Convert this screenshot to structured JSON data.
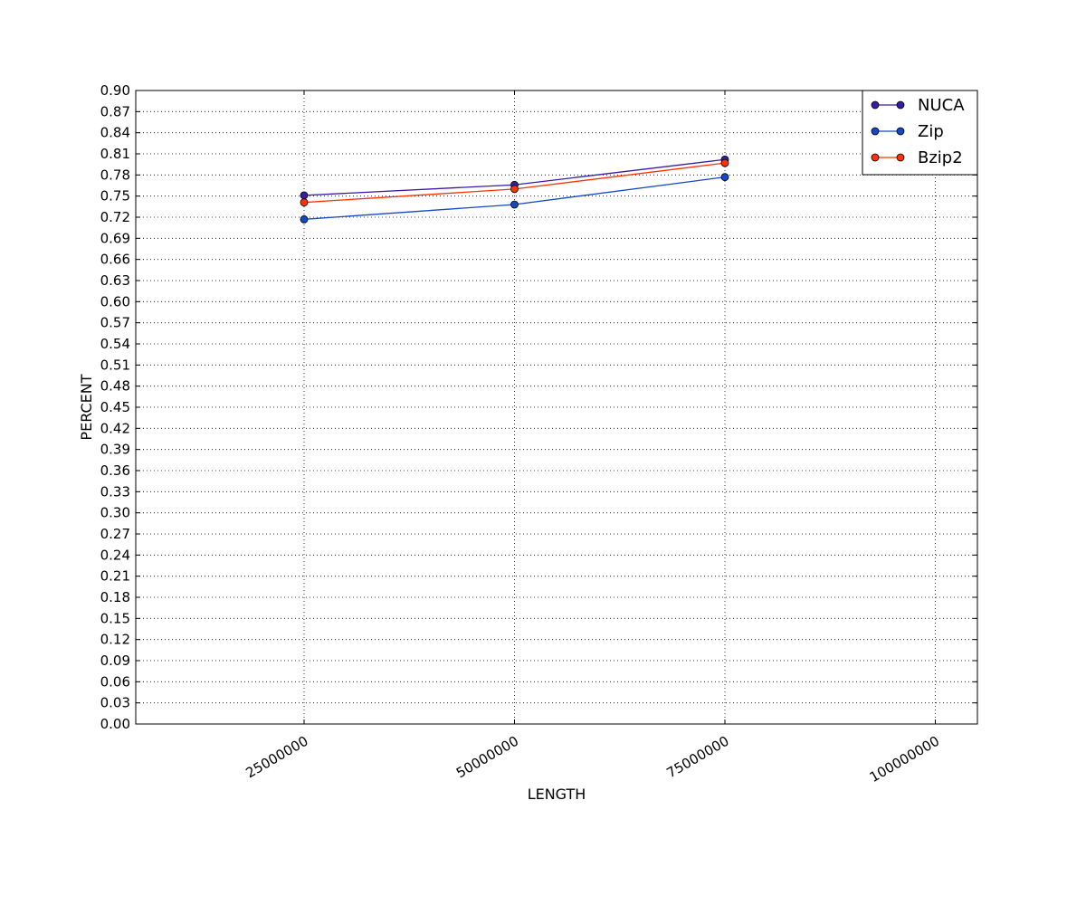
{
  "chart_data": {
    "type": "line",
    "title": "",
    "xlabel": "LENGTH",
    "ylabel": "PERCENT",
    "xlim": [
      5000000,
      105000000
    ],
    "ylim": [
      0.0,
      0.9
    ],
    "x_ticks": [
      25000000,
      50000000,
      75000000,
      100000000
    ],
    "x_tick_labels": [
      "25000000",
      "50000000",
      "75000000",
      "100000000"
    ],
    "y_ticks": [
      0.0,
      0.03,
      0.06,
      0.09,
      0.12,
      0.15,
      0.18,
      0.21,
      0.24,
      0.27,
      0.3,
      0.33,
      0.36,
      0.39,
      0.42,
      0.45,
      0.48,
      0.51,
      0.54,
      0.57,
      0.6,
      0.63,
      0.66,
      0.69,
      0.72,
      0.75,
      0.78,
      0.81,
      0.84,
      0.87,
      0.9
    ],
    "y_tick_labels": [
      "0.00",
      "0.03",
      "0.06",
      "0.09",
      "0.12",
      "0.15",
      "0.18",
      "0.21",
      "0.24",
      "0.27",
      "0.30",
      "0.33",
      "0.36",
      "0.39",
      "0.42",
      "0.45",
      "0.48",
      "0.51",
      "0.54",
      "0.57",
      "0.60",
      "0.63",
      "0.66",
      "0.69",
      "0.72",
      "0.75",
      "0.78",
      "0.81",
      "0.84",
      "0.87",
      "0.90"
    ],
    "grid": true,
    "legend_position": "top-right",
    "x": [
      25000000,
      50000000,
      75000000
    ],
    "series": [
      {
        "name": "NUCA",
        "color": "#3a1aa8",
        "values": [
          0.751,
          0.766,
          0.802
        ]
      },
      {
        "name": "Zip",
        "color": "#1448c8",
        "values": [
          0.717,
          0.738,
          0.777
        ]
      },
      {
        "name": "Bzip2",
        "color": "#ff3300",
        "values": [
          0.741,
          0.76,
          0.797
        ]
      }
    ]
  }
}
